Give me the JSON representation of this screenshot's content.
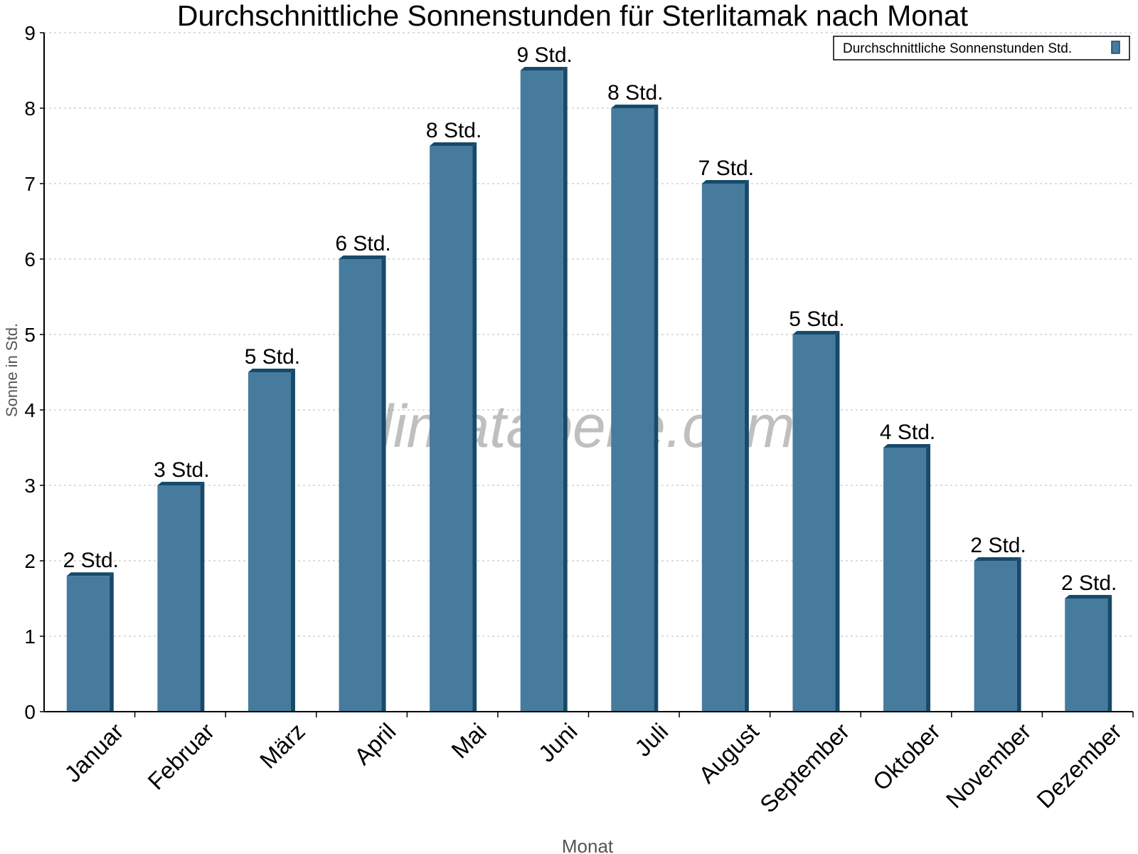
{
  "chart_data": {
    "type": "bar",
    "title": "Durchschnittliche Sonnenstunden für Sterlitamak nach Monat",
    "xlabel": "Monat",
    "ylabel": "Sonne in Std.",
    "ylim": [
      0,
      9
    ],
    "yticks": [
      "0",
      "1",
      "2",
      "3",
      "4",
      "5",
      "6",
      "7",
      "8",
      "9"
    ],
    "grid": true,
    "legend_position": "top-right",
    "categories": [
      "Januar",
      "Februar",
      "März",
      "April",
      "Mai",
      "Juni",
      "Juli",
      "August",
      "September",
      "Oktober",
      "November",
      "Dezember"
    ],
    "series": [
      {
        "name": "Durchschnittliche Sonnenstunden Std.",
        "values": [
          1.8,
          3.0,
          4.5,
          6.0,
          7.5,
          8.5,
          8.0,
          7.0,
          5.0,
          3.5,
          2.0,
          1.5
        ],
        "labels": [
          "2 Std.",
          "3 Std.",
          "5 Std.",
          "6 Std.",
          "8 Std.",
          "9 Std.",
          "8 Std.",
          "7 Std.",
          "5 Std.",
          "4 Std.",
          "2 Std.",
          "2 Std."
        ]
      }
    ],
    "colors": {
      "bar": "#467b9d",
      "bar_side": "#174a6a"
    },
    "watermark": "klimatabelle.com"
  }
}
